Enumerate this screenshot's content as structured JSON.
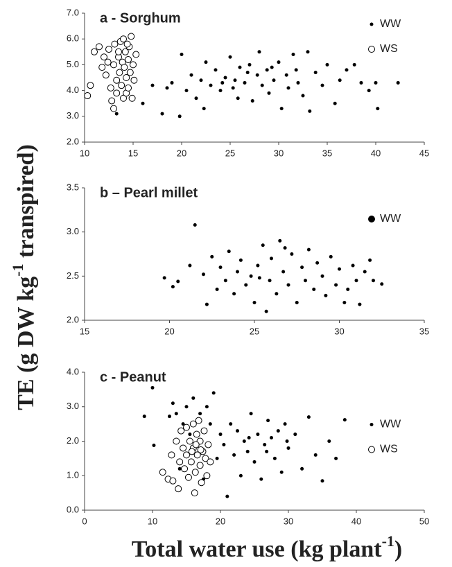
{
  "figure": {
    "y_label": {
      "main": "TE (g DW kg",
      "sup": "-1",
      "end": " transpired)"
    },
    "x_label": {
      "main": "Total water use (kg plant",
      "sup": "-1",
      "end": ")"
    }
  },
  "chart_data": [
    {
      "type": "scatter",
      "title": "a - Sorghum",
      "legend": "upper right",
      "xlim": [
        10,
        45
      ],
      "xticks": [
        10,
        15,
        20,
        25,
        30,
        35,
        40,
        45
      ],
      "ylim": [
        2,
        7
      ],
      "yticks": [
        {
          "value": 2,
          "label": "2.0"
        },
        {
          "value": 3,
          "label": "3.0"
        },
        {
          "value": 4,
          "label": "4.0"
        },
        {
          "value": 5,
          "label": "5.0"
        },
        {
          "value": 6,
          "label": "6.0"
        },
        {
          "value": 7,
          "label": "7.0"
        }
      ],
      "series": [
        {
          "name": "WW",
          "color": "#000000",
          "marker": "filled",
          "x": [
            13.3,
            15.2,
            16,
            17,
            18,
            18.5,
            19,
            19.8,
            20,
            20.5,
            21,
            21.5,
            22,
            22.5,
            22.3,
            23,
            23.5,
            24,
            24.5,
            25,
            25.3,
            25.8,
            26,
            26.5,
            27,
            27.3,
            27.8,
            28,
            28.3,
            28.8,
            29,
            29.5,
            30,
            30.3,
            30.8,
            31,
            31.5,
            32,
            32.5,
            33,
            33.2,
            33.8,
            34.5,
            35,
            35.8,
            36.3,
            37,
            37.8,
            38.5,
            39.3,
            40.2,
            40,
            42.3,
            25.5,
            26.8,
            29.3,
            31.8,
            24.2
          ],
          "values": [
            3.1,
            4.4,
            3.5,
            4.2,
            3.1,
            4.1,
            4.3,
            3.0,
            5.4,
            4.0,
            4.6,
            3.7,
            4.4,
            5.1,
            3.3,
            4.2,
            4.8,
            4.0,
            4.5,
            5.3,
            4.1,
            3.7,
            4.9,
            4.3,
            5.0,
            3.6,
            4.6,
            5.5,
            4.2,
            4.8,
            3.9,
            4.4,
            5.1,
            3.3,
            4.6,
            4.1,
            5.4,
            4.3,
            3.8,
            5.5,
            3.2,
            4.7,
            4.2,
            5.0,
            3.5,
            4.4,
            4.8,
            5.0,
            4.3,
            4.0,
            3.3,
            4.3,
            4.3,
            4.4,
            4.7,
            4.9,
            4.8,
            4.3
          ]
        },
        {
          "name": "WS",
          "color": "#000000",
          "marker": "open",
          "x": [
            10.3,
            10.6,
            11,
            11.5,
            11.8,
            12,
            12.2,
            12.5,
            12.7,
            12.8,
            13,
            13,
            13.1,
            13.3,
            13.3,
            13.5,
            13.6,
            13.7,
            13.8,
            13.9,
            14,
            14,
            14.1,
            14.2,
            14.3,
            14.3,
            14.5,
            14.5,
            14.6,
            14.7,
            14.8,
            14.9,
            15,
            15.1,
            15.3,
            13.5,
            12.4,
            14.4
          ],
          "values": [
            3.8,
            4.2,
            5.5,
            5.7,
            4.9,
            5.3,
            4.6,
            5.6,
            4.1,
            3.6,
            5.0,
            3.3,
            5.8,
            4.4,
            3.9,
            5.3,
            4.7,
            5.9,
            4.2,
            5.1,
            3.7,
            6.0,
            4.9,
            5.5,
            4.5,
            3.9,
            5.2,
            4.1,
            5.7,
            4.7,
            6.1,
            3.7,
            5.0,
            4.4,
            5.4,
            5.5,
            5.1,
            5.8
          ]
        }
      ]
    },
    {
      "type": "scatter",
      "title": "b – Pearl millet",
      "legend": "upper right",
      "xlim": [
        15,
        35
      ],
      "xticks": [
        15,
        20,
        25,
        30,
        35
      ],
      "ylim": [
        2,
        3.5
      ],
      "yticks": [
        {
          "value": 2,
          "label": "2.0"
        },
        2.5,
        {
          "value": 3,
          "label": "3.0"
        },
        3.5
      ],
      "series": [
        {
          "name": "WW",
          "color": "#000000",
          "marker": "filled",
          "x": [
            19.7,
            20.2,
            20.5,
            21.2,
            21.5,
            22,
            22.2,
            22.5,
            22.8,
            23,
            23.3,
            23.5,
            23.8,
            24,
            24.2,
            24.5,
            24.8,
            25,
            25.2,
            25.5,
            25.7,
            25.9,
            26,
            26.3,
            26.5,
            26.7,
            27,
            27.2,
            27.5,
            27.8,
            28,
            28.2,
            28.5,
            28.7,
            29,
            29.2,
            29.5,
            29.8,
            30,
            30.3,
            30.5,
            30.8,
            31,
            31.2,
            31.5,
            31.8,
            32,
            32.5,
            26.8,
            25.3
          ],
          "values": [
            2.48,
            2.38,
            2.44,
            2.62,
            3.08,
            2.52,
            2.18,
            2.72,
            2.35,
            2.6,
            2.45,
            2.78,
            2.3,
            2.55,
            2.68,
            2.4,
            2.5,
            2.2,
            2.62,
            2.85,
            2.1,
            2.45,
            2.7,
            2.3,
            2.9,
            2.55,
            2.4,
            2.75,
            2.2,
            2.6,
            2.45,
            2.8,
            2.35,
            2.65,
            2.5,
            2.28,
            2.72,
            2.4,
            2.58,
            2.2,
            2.35,
            2.62,
            2.45,
            2.18,
            2.55,
            2.68,
            2.45,
            2.41,
            2.82,
            2.48
          ]
        }
      ]
    },
    {
      "type": "scatter",
      "title": "c - Peanut",
      "legend": "center right",
      "xlim": [
        0,
        50
      ],
      "xticks": [
        0,
        10,
        20,
        30,
        40,
        50
      ],
      "ylim": [
        0,
        4
      ],
      "yticks": [
        {
          "value": 0,
          "label": "0.0"
        },
        {
          "value": 1,
          "label": "1.0"
        },
        {
          "value": 2,
          "label": "2.0"
        },
        {
          "value": 3,
          "label": "3.0"
        },
        {
          "value": 4,
          "label": "4.0"
        }
      ],
      "series": [
        {
          "name": "WW",
          "color": "#000000",
          "marker": "filled",
          "x": [
            8.8,
            10,
            10.2,
            12.5,
            13,
            13.5,
            14,
            14.5,
            15,
            15.5,
            16,
            16.5,
            17,
            17.5,
            18,
            18.5,
            19,
            19.5,
            20,
            20.5,
            21,
            21.5,
            22,
            22.5,
            23,
            23.5,
            24,
            24.5,
            25,
            25.5,
            26,
            26.5,
            27,
            27.5,
            28,
            28.5,
            29,
            29.5,
            30,
            31,
            32,
            33,
            34,
            35,
            36,
            37,
            38.3,
            24.2,
            26.8,
            29.8
          ],
          "values": [
            2.72,
            3.55,
            1.88,
            2.72,
            3.1,
            2.8,
            1.2,
            2.5,
            3.0,
            2.2,
            3.25,
            1.1,
            2.8,
            0.9,
            3.0,
            2.5,
            3.4,
            1.5,
            2.2,
            1.9,
            0.4,
            2.5,
            1.6,
            2.3,
            1.0,
            2.0,
            1.7,
            2.8,
            1.4,
            2.2,
            0.9,
            1.9,
            2.6,
            2.1,
            1.5,
            2.3,
            1.1,
            2.5,
            1.8,
            2.2,
            1.2,
            2.7,
            1.6,
            0.85,
            2.0,
            1.5,
            2.62,
            2.1,
            1.7,
            2.0
          ]
        },
        {
          "name": "WS",
          "color": "#000000",
          "marker": "open",
          "x": [
            11.5,
            12.3,
            12.8,
            13,
            13.5,
            13.8,
            14,
            14.2,
            14.5,
            14.7,
            15,
            15,
            15.3,
            15.5,
            15.7,
            16,
            16,
            16.2,
            16.3,
            16.5,
            16.6,
            16.8,
            17,
            17,
            17.2,
            17.4,
            17.6,
            17.8,
            18,
            18.2,
            18.5,
            16.4,
            15.8,
            17.1
          ],
          "values": [
            1.1,
            0.9,
            1.6,
            0.85,
            2.0,
            0.62,
            1.4,
            2.3,
            1.8,
            1.2,
            2.4,
            1.6,
            0.95,
            2.0,
            1.4,
            2.5,
            1.8,
            0.5,
            1.1,
            2.2,
            1.6,
            2.6,
            1.3,
            2.0,
            0.8,
            1.7,
            2.3,
            1.5,
            1.0,
            1.9,
            1.4,
            1.9,
            1.7,
            1.75
          ]
        }
      ]
    }
  ]
}
